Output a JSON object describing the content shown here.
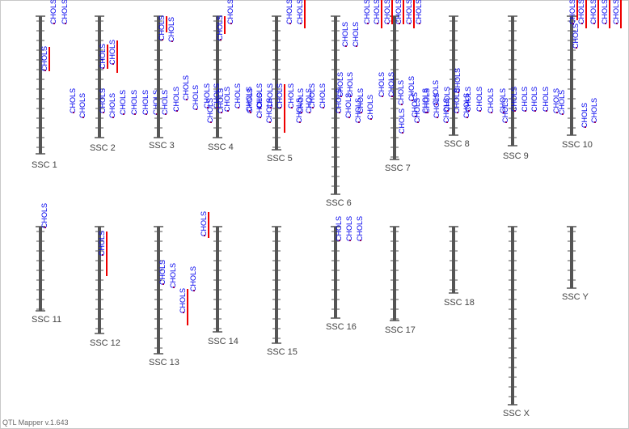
{
  "app": {
    "version_label": "QTL Mapper v.1.643"
  },
  "trait_label": "CHOLS",
  "colors": {
    "chromosome": "#555555",
    "qtl_text": "#0000ee",
    "qtl_bar": "#ee0000",
    "chrom_label": "#444444"
  },
  "chromosomes": [
    {
      "name": "SSC 1",
      "qtl_count": 5
    },
    {
      "name": "SSC 2",
      "qtl_count": 8
    },
    {
      "name": "SSC 3",
      "qtl_count": 6
    },
    {
      "name": "SSC 4",
      "qtl_count": 13
    },
    {
      "name": "SSC 5",
      "qtl_count": 10
    },
    {
      "name": "SSC 6",
      "qtl_count": 9
    },
    {
      "name": "SSC 7",
      "qtl_count": 18
    },
    {
      "name": "SSC 8",
      "qtl_count": 8
    },
    {
      "name": "SSC 9",
      "qtl_count": 6
    },
    {
      "name": "SSC 10",
      "qtl_count": 9
    },
    {
      "name": "SSC 11",
      "qtl_count": 1
    },
    {
      "name": "SSC 12",
      "qtl_count": 1
    },
    {
      "name": "SSC 13",
      "qtl_count": 4
    },
    {
      "name": "SSC 14",
      "qtl_count": 1
    },
    {
      "name": "SSC 15",
      "qtl_count": 0
    },
    {
      "name": "SSC 16",
      "qtl_count": 3
    },
    {
      "name": "SSC 17",
      "qtl_count": 0
    },
    {
      "name": "SSC 18",
      "qtl_count": 0
    },
    {
      "name": "SSC X",
      "qtl_count": 0
    },
    {
      "name": "SSC Y",
      "qtl_count": 0
    }
  ]
}
